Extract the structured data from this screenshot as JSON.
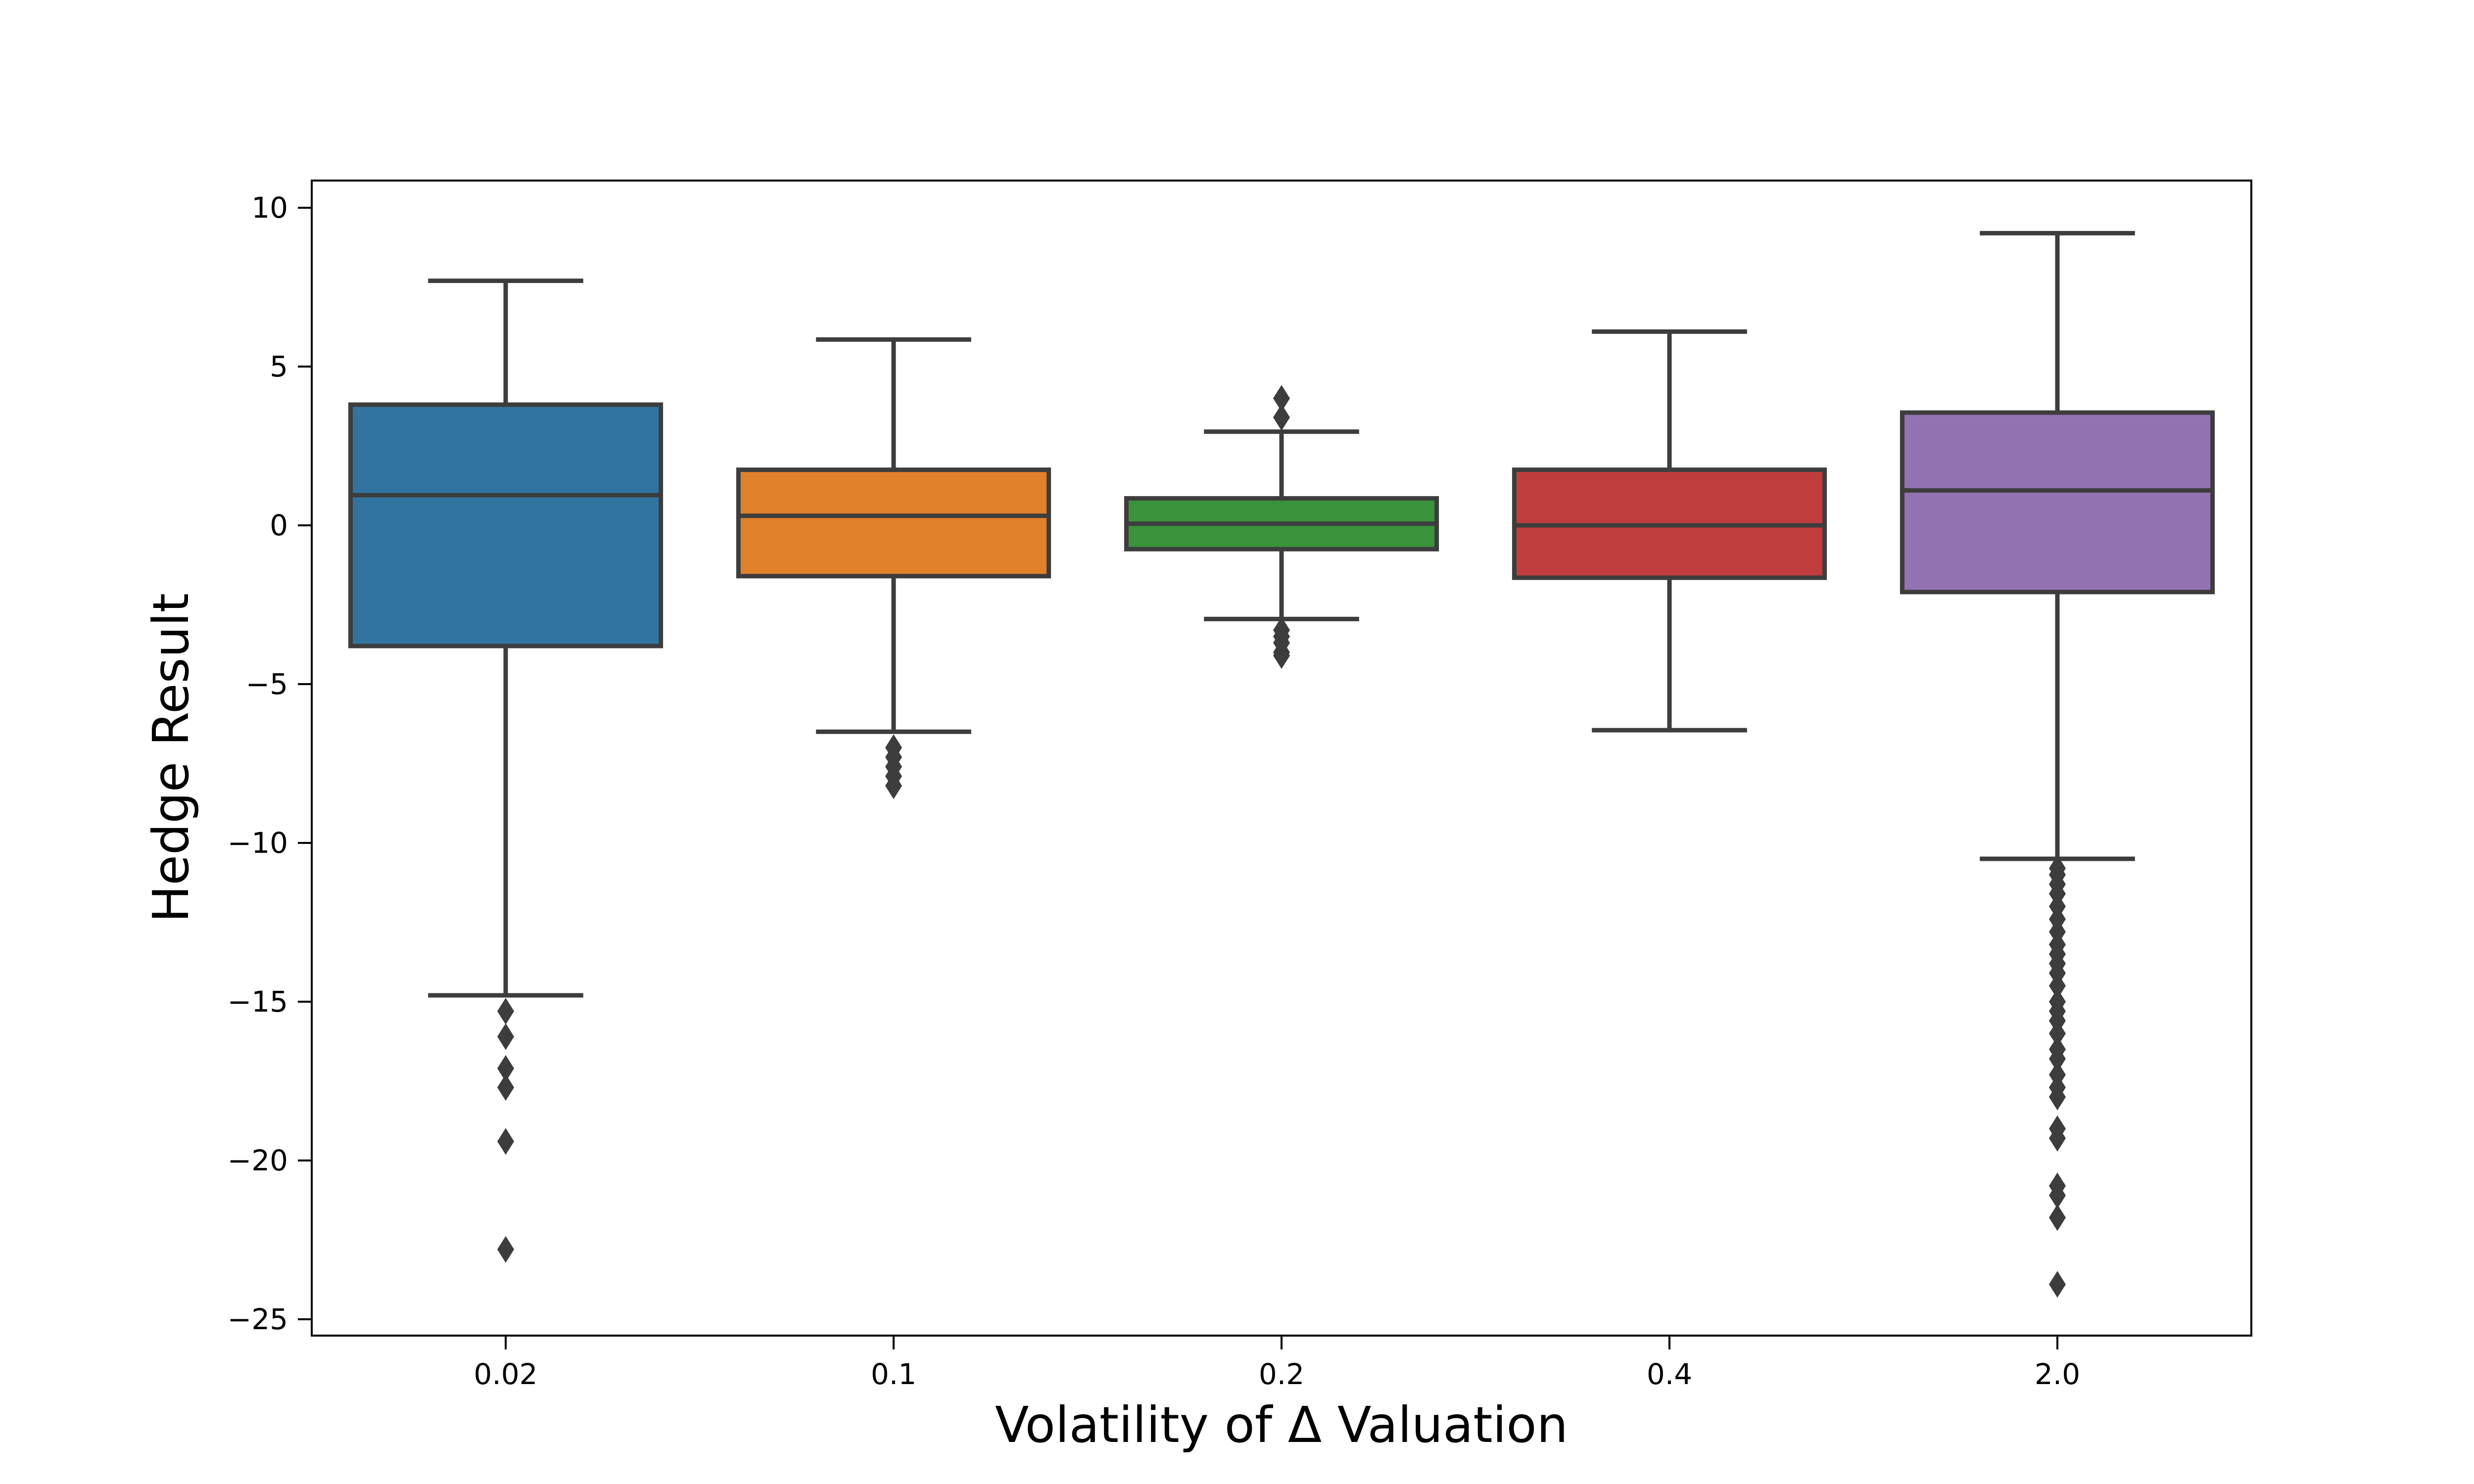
{
  "chart_data": {
    "type": "box",
    "xlabel": "Volatility of Δ Valuation",
    "ylabel": "Hedge Result",
    "ylim": [
      -25.5,
      10.9
    ],
    "yticks": [
      10,
      5,
      0,
      -5,
      -10,
      -15,
      -20,
      -25
    ],
    "ytick_labels": [
      "10",
      "5",
      "0",
      "−5",
      "−10",
      "−15",
      "−20",
      "−25"
    ],
    "grid": false,
    "legend": "none",
    "categories": [
      "0.02",
      "0.1",
      "0.2",
      "0.4",
      "2.0"
    ],
    "boxes": [
      {
        "category": "0.02",
        "whisker_low": -14.8,
        "q1": -3.8,
        "median": 0.95,
        "q3": 3.8,
        "whisker_high": 7.7,
        "color": "#3274a1",
        "outliers": [
          -15.3,
          -16.1,
          -17.1,
          -17.7,
          -19.4,
          -22.8
        ]
      },
      {
        "category": "0.1",
        "whisker_low": -6.5,
        "q1": -1.6,
        "median": 0.3,
        "q3": 1.75,
        "whisker_high": 5.85,
        "color": "#e1812c",
        "outliers": [
          -7.0,
          -7.3,
          -7.6,
          -7.9,
          -8.2
        ]
      },
      {
        "category": "0.2",
        "whisker_low": -2.95,
        "q1": -0.75,
        "median": 0.05,
        "q3": 0.85,
        "whisker_high": 2.95,
        "color": "#3a923a",
        "outliers": [
          4.0,
          3.4,
          -3.3,
          -3.5,
          -3.7,
          -4.0,
          -4.1
        ]
      },
      {
        "category": "0.4",
        "whisker_low": -6.45,
        "q1": -1.65,
        "median": 0.0,
        "q3": 1.75,
        "whisker_high": 6.1,
        "color": "#c03d3e",
        "outliers": []
      },
      {
        "category": "2.0",
        "whisker_low": -10.5,
        "q1": -2.1,
        "median": 1.1,
        "q3": 3.55,
        "whisker_high": 9.2,
        "color": "#9372b2",
        "outliers": [
          -10.8,
          -11.0,
          -11.3,
          -11.6,
          -12.0,
          -12.4,
          -12.8,
          -13.2,
          -13.5,
          -13.8,
          -14.1,
          -14.5,
          -15.0,
          -15.3,
          -15.6,
          -16.0,
          -16.5,
          -16.8,
          -17.3,
          -17.7,
          -18.0,
          -19.0,
          -19.3,
          -20.8,
          -21.1,
          -21.8,
          -23.9
        ]
      }
    ]
  }
}
